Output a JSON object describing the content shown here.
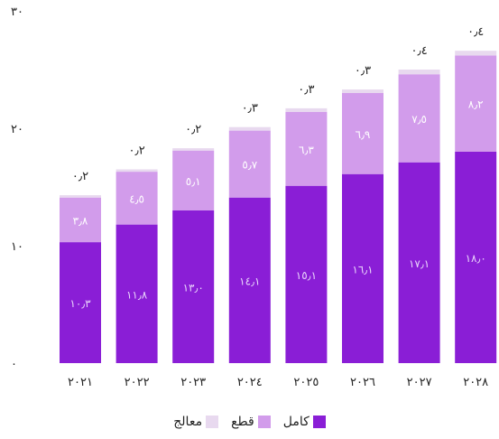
{
  "chart_data": {
    "type": "bar",
    "stacked": true,
    "categories": [
      "٢٠٢١",
      "٢٠٢٢",
      "٢٠٢٣",
      "٢٠٢٤",
      "٢٠٢٥",
      "٢٠٢٦",
      "٢٠٢٧",
      "٢٠٢٨"
    ],
    "y_ticks": [
      "٠",
      "١٠",
      "٢٠",
      "٣٠"
    ],
    "ylim": [
      0,
      30
    ],
    "grid": false,
    "legend_position": "bottom",
    "series": [
      {
        "name": "كامل",
        "color": "#8a1ed6",
        "label_color": "#e9d4fb",
        "values": [
          10.3,
          11.8,
          13.0,
          14.1,
          15.1,
          16.1,
          17.1,
          18.0
        ],
        "labels": [
          "١٠٫٣",
          "١١٫٨",
          "١٣٫٠",
          "١٤٫١",
          "١٥٫١",
          "١٦٫١",
          "١٧٫١",
          "١٨٫٠"
        ]
      },
      {
        "name": "قطع",
        "color": "#d29ceb",
        "label_color": "#ffffff",
        "values": [
          3.8,
          4.5,
          5.1,
          5.7,
          6.3,
          6.9,
          7.5,
          8.2
        ],
        "labels": [
          "٣٫٨",
          "٤٫٥",
          "٥٫١",
          "٥٫٧",
          "٦٫٣",
          "٦٫٩",
          "٧٫٥",
          "٨٫٢"
        ]
      },
      {
        "name": "معالج",
        "color": "#e8d9ef",
        "values": [
          0.2,
          0.2,
          0.2,
          0.3,
          0.3,
          0.3,
          0.4,
          0.4
        ],
        "labels": [
          "٠٫٢",
          "٠٫٢",
          "٠٫٢",
          "٠٫٣",
          "٠٫٣",
          "٠٫٣",
          "٠٫٤",
          "٠٫٤"
        ]
      }
    ]
  }
}
